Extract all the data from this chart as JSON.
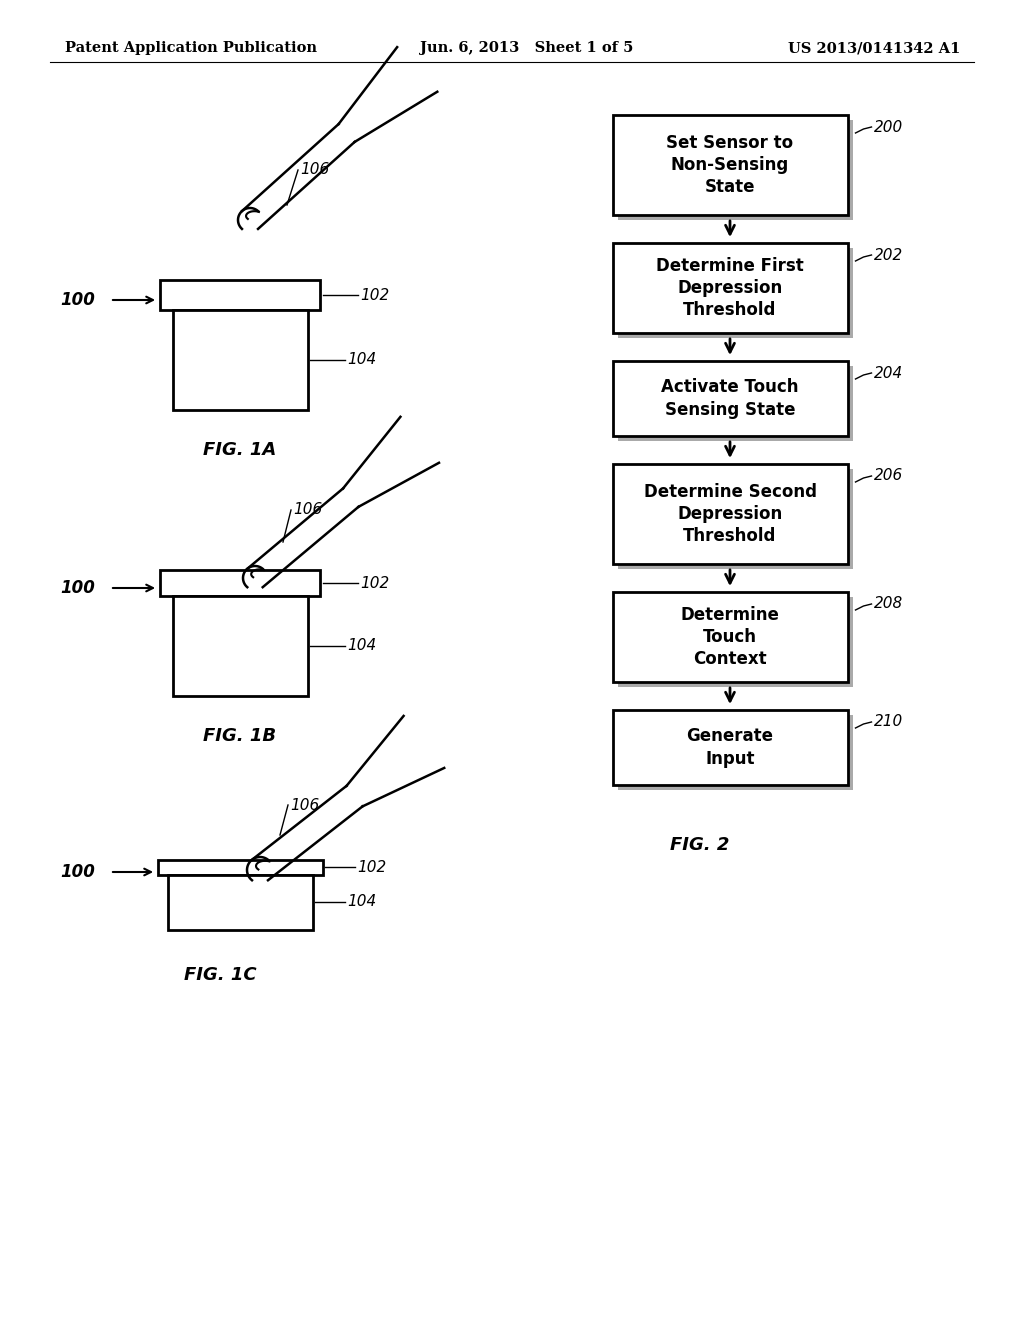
{
  "bg_color": "#ffffff",
  "header_left": "Patent Application Publication",
  "header_mid": "Jun. 6, 2013   Sheet 1 of 5",
  "header_right": "US 2013/0141342 A1",
  "header_fontsize": 10.5,
  "fig_labels": [
    "FIG. 1A",
    "FIG. 1B",
    "FIG. 1C",
    "FIG. 2"
  ],
  "flowchart_labels": [
    "Set Sensor to\nNon-Sensing\nState",
    "Determine First\nDepression\nThreshold",
    "Activate Touch\nSensing State",
    "Determine Second\nDepression\nThreshold",
    "Determine\nTouch\nContext",
    "Generate\nInput"
  ],
  "flowchart_refs": [
    "200",
    "202",
    "204",
    "206",
    "208",
    "210"
  ],
  "part_refs": {
    "button_assembly": "100",
    "cap": "102",
    "body": "104",
    "finger": "106"
  },
  "line_color": "#000000",
  "text_color": "#000000"
}
